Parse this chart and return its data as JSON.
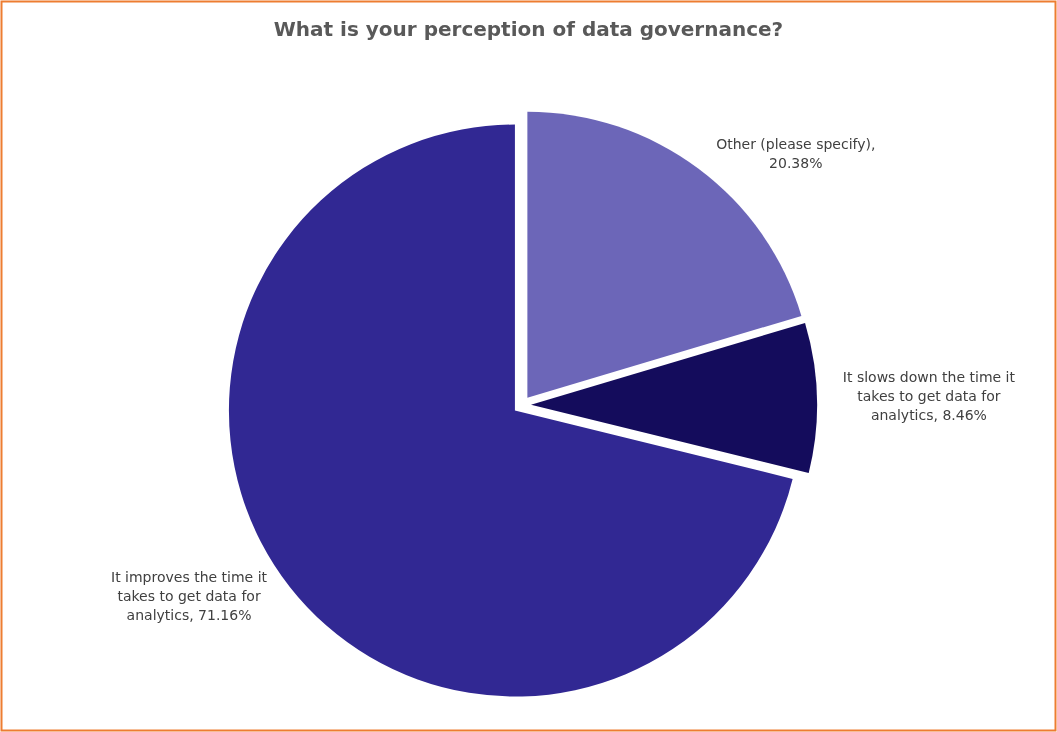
{
  "chart_data": {
    "type": "pie",
    "title": "What is your perception of data governance?",
    "categories": [
      "Other (please specify)",
      "It slows down the time it takes to get data for analytics",
      "It improves the time it takes to get data for analytics"
    ],
    "values": [
      20.38,
      8.46,
      71.16
    ],
    "value_labels": [
      ", 20.38%",
      ", 8.46%",
      ", 71.16%"
    ],
    "colors": [
      "#6c66b8",
      "#140c5c",
      "#312893"
    ]
  }
}
